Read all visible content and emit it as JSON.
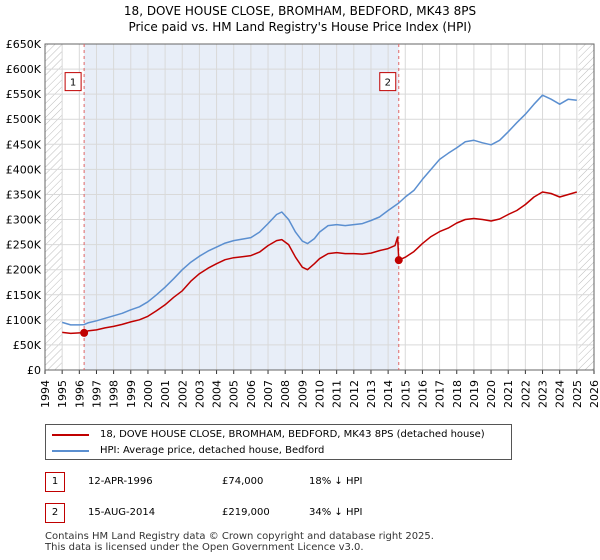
{
  "title_line1": "18, DOVE HOUSE CLOSE, BROMHAM, BEDFORD, MK43 8PS",
  "title_line2": "Price paid vs. HM Land Registry's House Price Index (HPI)",
  "chart_data": {
    "type": "line",
    "xlim": [
      1994,
      2026
    ],
    "ylim": [
      0,
      650000
    ],
    "y_ticks": [
      0,
      50000,
      100000,
      150000,
      200000,
      250000,
      300000,
      350000,
      400000,
      450000,
      500000,
      550000,
      600000,
      650000
    ],
    "y_tick_labels": [
      "£0",
      "£50K",
      "£100K",
      "£150K",
      "£200K",
      "£250K",
      "£300K",
      "£350K",
      "£400K",
      "£450K",
      "£500K",
      "£550K",
      "£600K",
      "£650K"
    ],
    "x_ticks": [
      1994,
      1995,
      1996,
      1997,
      1998,
      1999,
      2000,
      2001,
      2002,
      2003,
      2004,
      2005,
      2006,
      2007,
      2008,
      2009,
      2010,
      2011,
      2012,
      2013,
      2014,
      2015,
      2016,
      2017,
      2018,
      2019,
      2020,
      2021,
      2022,
      2023,
      2024,
      2025,
      2026
    ],
    "x_tick_labels": [
      "1994",
      "1995",
      "1996",
      "1997",
      "1998",
      "1999",
      "2000",
      "2001",
      "2002",
      "2003",
      "2004",
      "2005",
      "2006",
      "2007",
      "2008",
      "2009",
      "2010",
      "2011",
      "2012",
      "2013",
      "2014",
      "2015",
      "2016",
      "2017",
      "2018",
      "2019",
      "2020",
      "2021",
      "2022",
      "2023",
      "2024",
      "2025",
      "2026"
    ],
    "grid": true,
    "shaded_band": [
      1996.28,
      2014.62
    ],
    "hatched_before": 1995.0,
    "hatched_after": 2025.1,
    "series": [
      {
        "name": "18, DOVE HOUSE CLOSE, BROMHAM, BEDFORD, MK43 8PS (detached house)",
        "color": "#c00000",
        "points": [
          [
            1995.0,
            75000
          ],
          [
            1995.5,
            73000
          ],
          [
            1996.0,
            74000
          ],
          [
            1996.28,
            74000
          ],
          [
            1996.5,
            78000
          ],
          [
            1997.0,
            80000
          ],
          [
            1997.5,
            84000
          ],
          [
            1998.0,
            87000
          ],
          [
            1998.5,
            91000
          ],
          [
            1999.0,
            96000
          ],
          [
            1999.5,
            100000
          ],
          [
            2000.0,
            107000
          ],
          [
            2000.5,
            118000
          ],
          [
            2001.0,
            130000
          ],
          [
            2001.5,
            145000
          ],
          [
            2002.0,
            158000
          ],
          [
            2002.5,
            177000
          ],
          [
            2003.0,
            192000
          ],
          [
            2003.5,
            203000
          ],
          [
            2004.0,
            212000
          ],
          [
            2004.5,
            220000
          ],
          [
            2005.0,
            224000
          ],
          [
            2005.5,
            226000
          ],
          [
            2006.0,
            228000
          ],
          [
            2006.5,
            235000
          ],
          [
            2007.0,
            248000
          ],
          [
            2007.5,
            258000
          ],
          [
            2007.8,
            260000
          ],
          [
            2008.2,
            250000
          ],
          [
            2008.6,
            225000
          ],
          [
            2009.0,
            205000
          ],
          [
            2009.3,
            200000
          ],
          [
            2009.7,
            212000
          ],
          [
            2010.0,
            222000
          ],
          [
            2010.5,
            232000
          ],
          [
            2011.0,
            234000
          ],
          [
            2011.5,
            232000
          ],
          [
            2012.0,
            232000
          ],
          [
            2012.5,
            231000
          ],
          [
            2013.0,
            233000
          ],
          [
            2013.5,
            238000
          ],
          [
            2014.0,
            242000
          ],
          [
            2014.4,
            248000
          ],
          [
            2014.55,
            265000
          ],
          [
            2014.62,
            219000
          ],
          [
            2015.0,
            225000
          ],
          [
            2015.5,
            236000
          ],
          [
            2016.0,
            252000
          ],
          [
            2016.5,
            266000
          ],
          [
            2017.0,
            276000
          ],
          [
            2017.5,
            283000
          ],
          [
            2018.0,
            293000
          ],
          [
            2018.5,
            300000
          ],
          [
            2019.0,
            302000
          ],
          [
            2019.5,
            300000
          ],
          [
            2020.0,
            297000
          ],
          [
            2020.5,
            301000
          ],
          [
            2021.0,
            310000
          ],
          [
            2021.5,
            318000
          ],
          [
            2022.0,
            330000
          ],
          [
            2022.5,
            345000
          ],
          [
            2023.0,
            355000
          ],
          [
            2023.5,
            352000
          ],
          [
            2024.0,
            345000
          ],
          [
            2024.5,
            350000
          ],
          [
            2025.0,
            355000
          ]
        ]
      },
      {
        "name": "HPI: Average price, detached house, Bedford",
        "color": "#5b8fd0",
        "points": [
          [
            1995.0,
            95000
          ],
          [
            1995.5,
            90000
          ],
          [
            1996.0,
            90000
          ],
          [
            1996.28,
            90500
          ],
          [
            1996.5,
            94000
          ],
          [
            1997.0,
            98000
          ],
          [
            1997.5,
            103000
          ],
          [
            1998.0,
            108000
          ],
          [
            1998.5,
            113000
          ],
          [
            1999.0,
            120000
          ],
          [
            1999.5,
            126000
          ],
          [
            2000.0,
            136000
          ],
          [
            2000.5,
            150000
          ],
          [
            2001.0,
            165000
          ],
          [
            2001.5,
            182000
          ],
          [
            2002.0,
            200000
          ],
          [
            2002.5,
            215000
          ],
          [
            2003.0,
            227000
          ],
          [
            2003.5,
            237000
          ],
          [
            2004.0,
            245000
          ],
          [
            2004.5,
            253000
          ],
          [
            2005.0,
            258000
          ],
          [
            2005.5,
            261000
          ],
          [
            2006.0,
            264000
          ],
          [
            2006.5,
            275000
          ],
          [
            2007.0,
            292000
          ],
          [
            2007.5,
            310000
          ],
          [
            2007.8,
            315000
          ],
          [
            2008.2,
            300000
          ],
          [
            2008.6,
            275000
          ],
          [
            2009.0,
            257000
          ],
          [
            2009.3,
            252000
          ],
          [
            2009.7,
            262000
          ],
          [
            2010.0,
            275000
          ],
          [
            2010.5,
            288000
          ],
          [
            2011.0,
            290000
          ],
          [
            2011.5,
            288000
          ],
          [
            2012.0,
            290000
          ],
          [
            2012.5,
            292000
          ],
          [
            2013.0,
            298000
          ],
          [
            2013.5,
            305000
          ],
          [
            2014.0,
            318000
          ],
          [
            2014.62,
            333000
          ],
          [
            2015.0,
            345000
          ],
          [
            2015.5,
            358000
          ],
          [
            2016.0,
            380000
          ],
          [
            2016.5,
            400000
          ],
          [
            2017.0,
            420000
          ],
          [
            2017.5,
            432000
          ],
          [
            2018.0,
            443000
          ],
          [
            2018.5,
            455000
          ],
          [
            2019.0,
            458000
          ],
          [
            2019.5,
            453000
          ],
          [
            2020.0,
            449000
          ],
          [
            2020.5,
            458000
          ],
          [
            2021.0,
            475000
          ],
          [
            2021.5,
            493000
          ],
          [
            2022.0,
            510000
          ],
          [
            2022.5,
            530000
          ],
          [
            2023.0,
            548000
          ],
          [
            2023.5,
            540000
          ],
          [
            2024.0,
            530000
          ],
          [
            2024.5,
            540000
          ],
          [
            2025.0,
            538000
          ]
        ]
      }
    ],
    "sales": [
      {
        "label": "1",
        "x": 1996.28,
        "y": 74000
      },
      {
        "label": "2",
        "x": 2014.62,
        "y": 219000
      }
    ],
    "marker_label_y": 575000
  },
  "legend": {
    "items": [
      {
        "label": "18, DOVE HOUSE CLOSE, BROMHAM, BEDFORD, MK43 8PS (detached house)",
        "color": "#c00000"
      },
      {
        "label": "HPI: Average price, detached house, Bedford",
        "color": "#5b8fd0"
      }
    ]
  },
  "sales_table": [
    {
      "num": "1",
      "date": "12-APR-1996",
      "price": "£74,000",
      "hpi": "18% ↓ HPI"
    },
    {
      "num": "2",
      "date": "15-AUG-2014",
      "price": "£219,000",
      "hpi": "34% ↓ HPI"
    }
  ],
  "footer": {
    "line1": "Contains HM Land Registry data © Crown copyright and database right 2025.",
    "line2": "This data is licensed under the Open Government Licence v3.0."
  }
}
